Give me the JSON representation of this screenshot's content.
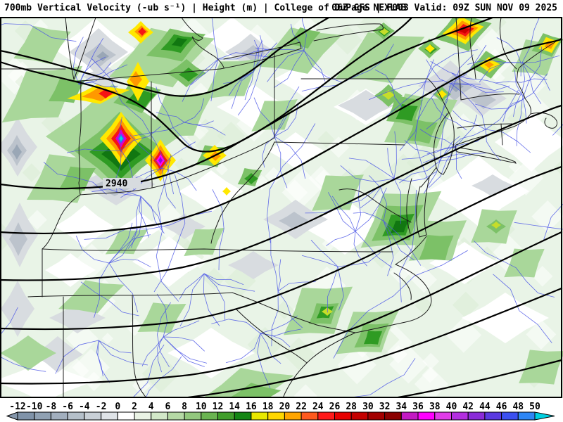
{
  "header": {
    "title_left": "700mb Vertical Velocity (-ub s⁻¹) | Height (m) | College of DuPage NEXLAB",
    "title_right": "06Z GFS | F003 Valid: 09Z SUN NOV 09 2025"
  },
  "map": {
    "height_contour_label": "2940"
  },
  "colorbar": {
    "ticks": [
      "-12",
      "-10",
      "-8",
      "-6",
      "-4",
      "-2",
      "0",
      "2",
      "4",
      "6",
      "8",
      "10",
      "12",
      "14",
      "16",
      "18",
      "20",
      "22",
      "24",
      "26",
      "28",
      "30",
      "32",
      "34",
      "36",
      "38",
      "40",
      "42",
      "44",
      "46",
      "48",
      "50"
    ],
    "cell_colors": [
      "#8093a9",
      "#90a1b3",
      "#a2afbe",
      "#b5c0ca",
      "#c9d0d7",
      "#dfe3e7",
      "#ffffff",
      "#eaf3e5",
      "#d2e8c8",
      "#b5d9a5",
      "#93c87e",
      "#6ab451",
      "#409e2b",
      "#148614",
      "#e8e800",
      "#ffd700",
      "#ffa500",
      "#ff5a1e",
      "#ff1a1a",
      "#e60000",
      "#c40000",
      "#a30000",
      "#8b0000",
      "#c319c3",
      "#ff00ff",
      "#e03ce8",
      "#b32ee0",
      "#8a2bd8",
      "#5a39e0",
      "#3c50f0",
      "#2e86f5"
    ],
    "left_arrow_color": "#8496ab",
    "right_arrow_color": "#00cfe0"
  }
}
